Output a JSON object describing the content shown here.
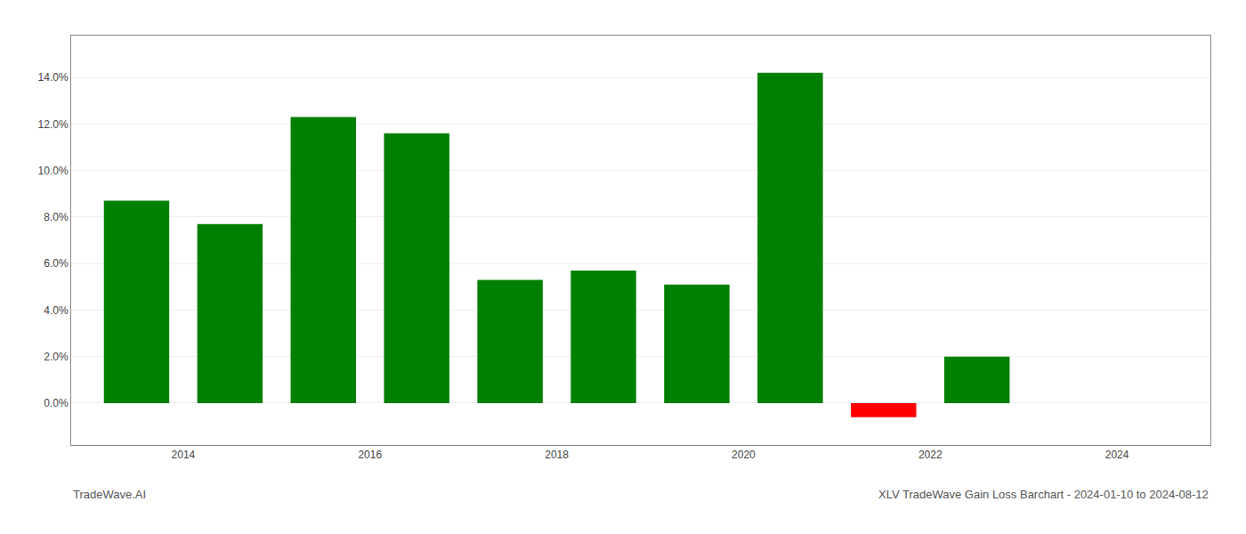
{
  "chart_data": {
    "type": "bar",
    "x": [
      2013.5,
      2014.5,
      2015.5,
      2016.5,
      2017.5,
      2018.5,
      2019.5,
      2020.5,
      2021.5,
      2022.5,
      2023.5
    ],
    "values": [
      0.087,
      0.077,
      0.123,
      0.116,
      0.053,
      0.057,
      0.051,
      0.142,
      -0.006,
      0.02,
      null
    ],
    "colors": [
      "#008000",
      "#008000",
      "#008000",
      "#008000",
      "#008000",
      "#008000",
      "#008000",
      "#008000",
      "#ff0000",
      "#008000",
      null
    ],
    "xlim": [
      2012.8,
      2025.0
    ],
    "xticks": [
      2014,
      2016,
      2018,
      2020,
      2022,
      2024
    ],
    "ylim": [
      -0.018,
      0.158
    ],
    "yticks": [
      {
        "value": 0.0,
        "label": "0.0%"
      },
      {
        "value": 0.02,
        "label": "2.0%"
      },
      {
        "value": 0.04,
        "label": "4.0%"
      },
      {
        "value": 0.06,
        "label": "6.0%"
      },
      {
        "value": 0.08,
        "label": "8.0%"
      },
      {
        "value": 0.1,
        "label": "10.0%"
      },
      {
        "value": 0.12,
        "label": "12.0%"
      },
      {
        "value": 0.14,
        "label": "14.0%"
      }
    ],
    "grid": true,
    "annotations": [
      "TradeWave.AI",
      "XLV TradeWave Gain Loss Barchart - 2024-01-10 to 2024-08-12"
    ]
  }
}
